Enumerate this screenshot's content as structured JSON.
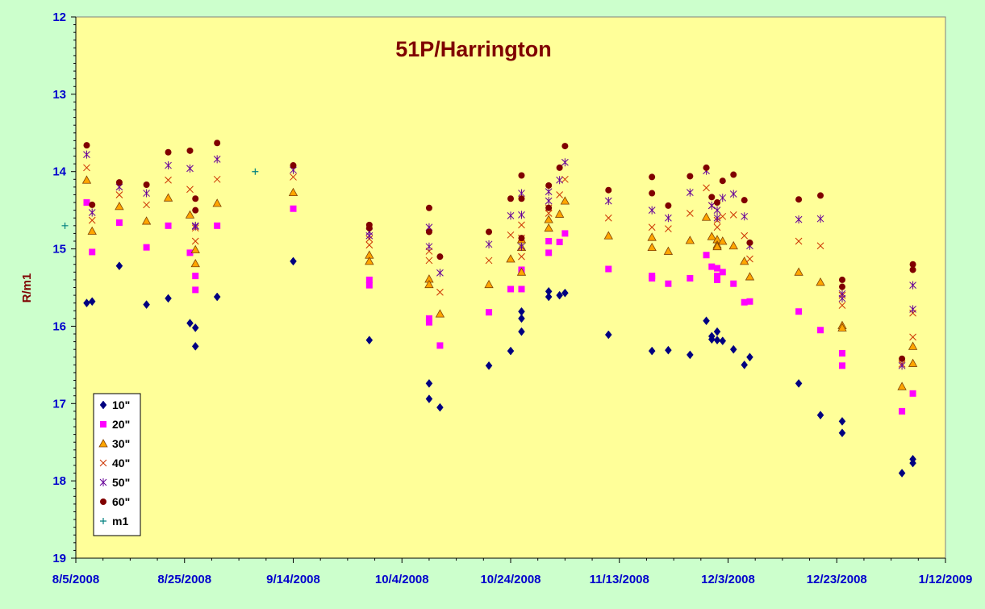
{
  "chart_data": {
    "type": "scatter",
    "title": "51P/Harrington",
    "xlabel": "",
    "ylabel": "R/m1",
    "x_type": "date",
    "xlim": [
      "2008-08-05",
      "2009-01-12"
    ],
    "ylim": [
      19,
      12
    ],
    "y_reversed": true,
    "x_tick_labels": [
      "8/5/2008",
      "8/25/2008",
      "9/14/2008",
      "10/4/2008",
      "10/24/2008",
      "11/13/2008",
      "12/3/2008",
      "12/23/2008",
      "1/12/2009"
    ],
    "x_tick_dates": [
      "2008-08-05",
      "2008-08-25",
      "2008-09-14",
      "2008-10-04",
      "2008-10-24",
      "2008-11-13",
      "2008-12-03",
      "2008-12-23",
      "2009-01-12"
    ],
    "y_ticks": [
      12,
      13,
      14,
      15,
      16,
      17,
      18,
      19
    ],
    "grid": false,
    "legend_position": "bottom-left",
    "plot_background": "#ffff99",
    "page_background": "#ccffcc",
    "series": [
      {
        "name": "10\"",
        "marker": "diamond",
        "color": "#000080",
        "points": [
          [
            "2008-08-07",
            15.7
          ],
          [
            "2008-08-08",
            15.68
          ],
          [
            "2008-08-13",
            15.22
          ],
          [
            "2008-08-18",
            15.72
          ],
          [
            "2008-08-22",
            15.64
          ],
          [
            "2008-08-26",
            15.96
          ],
          [
            "2008-08-27",
            16.02
          ],
          [
            "2008-08-27",
            16.26
          ],
          [
            "2008-08-31",
            15.62
          ],
          [
            "2008-09-14",
            15.16
          ],
          [
            "2008-09-28",
            16.18
          ],
          [
            "2008-10-09",
            16.74
          ],
          [
            "2008-10-09",
            16.94
          ],
          [
            "2008-10-11",
            17.05
          ],
          [
            "2008-10-20",
            16.51
          ],
          [
            "2008-10-24",
            16.32
          ],
          [
            "2008-10-26",
            16.07
          ],
          [
            "2008-10-26",
            15.9
          ],
          [
            "2008-10-26",
            15.81
          ],
          [
            "2008-10-31",
            15.55
          ],
          [
            "2008-10-31",
            15.62
          ],
          [
            "2008-11-02",
            15.6
          ],
          [
            "2008-11-03",
            15.57
          ],
          [
            "2008-11-11",
            16.11
          ],
          [
            "2008-11-19",
            16.32
          ],
          [
            "2008-11-22",
            16.31
          ],
          [
            "2008-11-26",
            16.37
          ],
          [
            "2008-11-29",
            15.93
          ],
          [
            "2008-11-30",
            16.13
          ],
          [
            "2008-11-30",
            16.17
          ],
          [
            "2008-12-01",
            16.07
          ],
          [
            "2008-12-01",
            16.18
          ],
          [
            "2008-12-02",
            16.19
          ],
          [
            "2008-12-04",
            16.3
          ],
          [
            "2008-12-06",
            16.5
          ],
          [
            "2008-12-07",
            16.4
          ],
          [
            "2008-12-16",
            16.74
          ],
          [
            "2008-12-20",
            17.15
          ],
          [
            "2008-12-24",
            17.23
          ],
          [
            "2008-12-24",
            17.38
          ],
          [
            "2009-01-04",
            17.9
          ],
          [
            "2009-01-06",
            17.72
          ],
          [
            "2009-01-06",
            17.77
          ]
        ]
      },
      {
        "name": "20\"",
        "marker": "square",
        "color": "#ff00ff",
        "points": [
          [
            "2008-08-07",
            14.4
          ],
          [
            "2008-08-08",
            15.04
          ],
          [
            "2008-08-13",
            14.66
          ],
          [
            "2008-08-18",
            14.98
          ],
          [
            "2008-08-22",
            14.7
          ],
          [
            "2008-08-26",
            15.05
          ],
          [
            "2008-08-27",
            15.35
          ],
          [
            "2008-08-27",
            15.53
          ],
          [
            "2008-08-31",
            14.7
          ],
          [
            "2008-09-14",
            14.48
          ],
          [
            "2008-09-28",
            15.4
          ],
          [
            "2008-09-28",
            15.47
          ],
          [
            "2008-10-09",
            15.9
          ],
          [
            "2008-10-09",
            15.95
          ],
          [
            "2008-10-11",
            16.25
          ],
          [
            "2008-10-20",
            15.82
          ],
          [
            "2008-10-24",
            15.52
          ],
          [
            "2008-10-26",
            15.52
          ],
          [
            "2008-10-26",
            15.27
          ],
          [
            "2008-10-26",
            15.3
          ],
          [
            "2008-10-31",
            14.9
          ],
          [
            "2008-10-31",
            15.05
          ],
          [
            "2008-11-02",
            14.91
          ],
          [
            "2008-11-03",
            14.8
          ],
          [
            "2008-11-11",
            15.26
          ],
          [
            "2008-11-19",
            15.35
          ],
          [
            "2008-11-19",
            15.38
          ],
          [
            "2008-11-22",
            15.45
          ],
          [
            "2008-11-26",
            15.38
          ],
          [
            "2008-11-29",
            15.08
          ],
          [
            "2008-11-30",
            15.23
          ],
          [
            "2008-12-01",
            15.25
          ],
          [
            "2008-12-01",
            15.35
          ],
          [
            "2008-12-01",
            15.4
          ],
          [
            "2008-12-02",
            15.3
          ],
          [
            "2008-12-04",
            15.45
          ],
          [
            "2008-12-06",
            15.69
          ],
          [
            "2008-12-07",
            15.68
          ],
          [
            "2008-12-16",
            15.81
          ],
          [
            "2008-12-20",
            16.05
          ],
          [
            "2008-12-24",
            16.35
          ],
          [
            "2008-12-24",
            16.51
          ],
          [
            "2009-01-04",
            17.1
          ],
          [
            "2009-01-06",
            16.87
          ]
        ]
      },
      {
        "name": "30\"",
        "marker": "triangle",
        "color": "#ffa500",
        "points": [
          [
            "2008-08-07",
            14.11
          ],
          [
            "2008-08-08",
            14.77
          ],
          [
            "2008-08-13",
            14.45
          ],
          [
            "2008-08-18",
            14.64
          ],
          [
            "2008-08-22",
            14.34
          ],
          [
            "2008-08-26",
            14.56
          ],
          [
            "2008-08-27",
            15.01
          ],
          [
            "2008-08-27",
            15.19
          ],
          [
            "2008-08-31",
            14.41
          ],
          [
            "2008-09-14",
            14.27
          ],
          [
            "2008-09-28",
            15.08
          ],
          [
            "2008-09-28",
            15.16
          ],
          [
            "2008-10-09",
            15.39
          ],
          [
            "2008-10-09",
            15.46
          ],
          [
            "2008-10-11",
            15.84
          ],
          [
            "2008-10-20",
            15.46
          ],
          [
            "2008-10-24",
            15.13
          ],
          [
            "2008-10-26",
            15.3
          ],
          [
            "2008-10-26",
            14.98
          ],
          [
            "2008-10-26",
            14.88
          ],
          [
            "2008-10-31",
            14.62
          ],
          [
            "2008-10-31",
            14.73
          ],
          [
            "2008-11-02",
            14.55
          ],
          [
            "2008-11-03",
            14.38
          ],
          [
            "2008-11-11",
            14.83
          ],
          [
            "2008-11-19",
            14.85
          ],
          [
            "2008-11-19",
            14.98
          ],
          [
            "2008-11-22",
            15.03
          ],
          [
            "2008-11-26",
            14.89
          ],
          [
            "2008-11-29",
            14.59
          ],
          [
            "2008-11-30",
            14.84
          ],
          [
            "2008-12-01",
            14.88
          ],
          [
            "2008-12-01",
            14.95
          ],
          [
            "2008-12-01",
            14.97
          ],
          [
            "2008-12-02",
            14.9
          ],
          [
            "2008-12-04",
            14.96
          ],
          [
            "2008-12-06",
            15.16
          ],
          [
            "2008-12-07",
            15.36
          ],
          [
            "2008-12-16",
            15.3
          ],
          [
            "2008-12-20",
            15.43
          ],
          [
            "2008-12-24",
            15.99
          ],
          [
            "2008-12-24",
            16.02
          ],
          [
            "2009-01-04",
            16.78
          ],
          [
            "2009-01-06",
            16.48
          ],
          [
            "2009-01-06",
            16.26
          ]
        ]
      },
      {
        "name": "40\"",
        "marker": "x",
        "color": "#cc3300",
        "points": [
          [
            "2008-08-07",
            13.95
          ],
          [
            "2008-08-08",
            14.63
          ],
          [
            "2008-08-13",
            14.3
          ],
          [
            "2008-08-18",
            14.43
          ],
          [
            "2008-08-22",
            14.11
          ],
          [
            "2008-08-26",
            14.23
          ],
          [
            "2008-08-27",
            14.9
          ],
          [
            "2008-08-27",
            14.73
          ],
          [
            "2008-08-31",
            14.1
          ],
          [
            "2008-09-14",
            14.07
          ],
          [
            "2008-09-28",
            14.95
          ],
          [
            "2008-09-28",
            14.87
          ],
          [
            "2008-10-09",
            15.03
          ],
          [
            "2008-10-09",
            15.15
          ],
          [
            "2008-10-11",
            15.56
          ],
          [
            "2008-10-20",
            15.15
          ],
          [
            "2008-10-24",
            14.82
          ],
          [
            "2008-10-26",
            15.1
          ],
          [
            "2008-10-26",
            14.86
          ],
          [
            "2008-10-26",
            14.69
          ],
          [
            "2008-10-31",
            14.47
          ],
          [
            "2008-10-31",
            14.54
          ],
          [
            "2008-11-02",
            14.3
          ],
          [
            "2008-11-03",
            14.1
          ],
          [
            "2008-11-11",
            14.6
          ],
          [
            "2008-11-19",
            14.72
          ],
          [
            "2008-11-22",
            14.74
          ],
          [
            "2008-11-26",
            14.54
          ],
          [
            "2008-11-29",
            14.21
          ],
          [
            "2008-11-30",
            14.44
          ],
          [
            "2008-12-01",
            14.63
          ],
          [
            "2008-12-01",
            14.72
          ],
          [
            "2008-12-02",
            14.58
          ],
          [
            "2008-12-04",
            14.56
          ],
          [
            "2008-12-06",
            14.83
          ],
          [
            "2008-12-07",
            15.13
          ],
          [
            "2008-12-16",
            14.9
          ],
          [
            "2008-12-20",
            14.96
          ],
          [
            "2008-12-24",
            15.73
          ],
          [
            "2008-12-24",
            15.6
          ],
          [
            "2009-01-04",
            16.49
          ],
          [
            "2009-01-06",
            16.14
          ],
          [
            "2009-01-06",
            15.83
          ]
        ]
      },
      {
        "name": "50\"",
        "marker": "star",
        "color": "#660099",
        "points": [
          [
            "2008-08-07",
            13.78
          ],
          [
            "2008-08-08",
            14.53
          ],
          [
            "2008-08-13",
            14.2
          ],
          [
            "2008-08-18",
            14.28
          ],
          [
            "2008-08-22",
            13.92
          ],
          [
            "2008-08-26",
            13.96
          ],
          [
            "2008-08-27",
            14.7
          ],
          [
            "2008-08-27",
            14.71
          ],
          [
            "2008-08-31",
            13.84
          ],
          [
            "2008-09-14",
            13.98
          ],
          [
            "2008-09-28",
            14.78
          ],
          [
            "2008-09-28",
            14.83
          ],
          [
            "2008-10-09",
            14.72
          ],
          [
            "2008-10-09",
            14.97
          ],
          [
            "2008-10-11",
            15.31
          ],
          [
            "2008-10-20",
            14.94
          ],
          [
            "2008-10-24",
            14.57
          ],
          [
            "2008-10-26",
            14.97
          ],
          [
            "2008-10-26",
            14.56
          ],
          [
            "2008-10-26",
            14.28
          ],
          [
            "2008-10-31",
            14.26
          ],
          [
            "2008-10-31",
            14.38
          ],
          [
            "2008-11-02",
            14.11
          ],
          [
            "2008-11-03",
            13.88
          ],
          [
            "2008-11-11",
            14.38
          ],
          [
            "2008-11-19",
            14.5
          ],
          [
            "2008-11-22",
            14.6
          ],
          [
            "2008-11-26",
            14.27
          ],
          [
            "2008-11-29",
            13.99
          ],
          [
            "2008-11-30",
            14.44
          ],
          [
            "2008-12-01",
            14.5
          ],
          [
            "2008-12-01",
            14.6
          ],
          [
            "2008-12-02",
            14.34
          ],
          [
            "2008-12-04",
            14.29
          ],
          [
            "2008-12-06",
            14.58
          ],
          [
            "2008-12-07",
            14.96
          ],
          [
            "2008-12-16",
            14.62
          ],
          [
            "2008-12-20",
            14.61
          ],
          [
            "2008-12-24",
            15.58
          ],
          [
            "2008-12-24",
            15.64
          ],
          [
            "2009-01-04",
            16.51
          ],
          [
            "2009-01-06",
            15.47
          ],
          [
            "2009-01-06",
            15.78
          ]
        ]
      },
      {
        "name": "60\"",
        "marker": "circle",
        "color": "#800000",
        "points": [
          [
            "2008-08-07",
            13.66
          ],
          [
            "2008-08-08",
            14.43
          ],
          [
            "2008-08-13",
            14.14
          ],
          [
            "2008-08-18",
            14.17
          ],
          [
            "2008-08-22",
            13.75
          ],
          [
            "2008-08-26",
            13.73
          ],
          [
            "2008-08-27",
            14.35
          ],
          [
            "2008-08-27",
            14.5
          ],
          [
            "2008-08-31",
            13.63
          ],
          [
            "2008-09-14",
            13.92
          ],
          [
            "2008-09-28",
            14.69
          ],
          [
            "2008-09-28",
            14.73
          ],
          [
            "2008-10-09",
            14.47
          ],
          [
            "2008-10-09",
            14.78
          ],
          [
            "2008-10-11",
            15.1
          ],
          [
            "2008-10-20",
            14.78
          ],
          [
            "2008-10-24",
            14.35
          ],
          [
            "2008-10-26",
            14.86
          ],
          [
            "2008-10-26",
            14.35
          ],
          [
            "2008-10-26",
            14.05
          ],
          [
            "2008-10-31",
            14.18
          ],
          [
            "2008-10-31",
            14.47
          ],
          [
            "2008-11-02",
            13.95
          ],
          [
            "2008-11-03",
            13.67
          ],
          [
            "2008-11-11",
            14.24
          ],
          [
            "2008-11-19",
            14.07
          ],
          [
            "2008-11-19",
            14.28
          ],
          [
            "2008-11-22",
            14.44
          ],
          [
            "2008-11-26",
            14.06
          ],
          [
            "2008-11-29",
            13.95
          ],
          [
            "2008-11-30",
            14.33
          ],
          [
            "2008-12-01",
            14.4
          ],
          [
            "2008-12-02",
            14.12
          ],
          [
            "2008-12-04",
            14.04
          ],
          [
            "2008-12-06",
            14.37
          ],
          [
            "2008-12-07",
            14.92
          ],
          [
            "2008-12-16",
            14.36
          ],
          [
            "2008-12-20",
            14.31
          ],
          [
            "2008-12-24",
            15.4
          ],
          [
            "2008-12-24",
            15.49
          ],
          [
            "2009-01-04",
            16.42
          ],
          [
            "2009-01-06",
            15.2
          ],
          [
            "2009-01-06",
            15.27
          ]
        ]
      },
      {
        "name": "m1",
        "marker": "plus",
        "color": "#008080",
        "points": [
          [
            "2008-08-03",
            14.7
          ],
          [
            "2008-09-07",
            14.0
          ]
        ]
      }
    ]
  }
}
